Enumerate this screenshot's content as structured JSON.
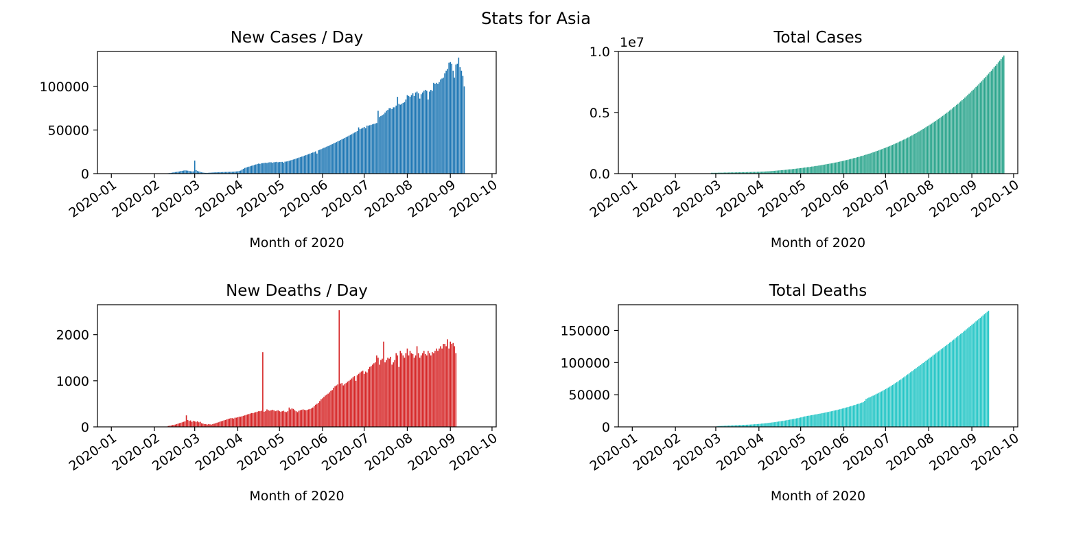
{
  "figure": {
    "title": "Stats for Asia"
  },
  "chart_data": [
    {
      "type": "bar",
      "title": "New Cases / Day",
      "xlabel": "Month of 2020",
      "ylabel": "",
      "color": "#1f77b4",
      "x_ticks": [
        "2020-01",
        "2020-02",
        "2020-03",
        "2020-04",
        "2020-05",
        "2020-06",
        "2020-07",
        "2020-08",
        "2020-09",
        "2020-10"
      ],
      "y_ticks": [
        0,
        50000,
        100000
      ],
      "y_tick_labels": [
        "0",
        "50000",
        "100000"
      ],
      "y_offset_label": "",
      "xlim": [
        "2019-12-22",
        "2020-10-04"
      ],
      "ylim": [
        0,
        140000
      ],
      "x_start": "2020-01-22",
      "x_end": "2020-09-21",
      "values": [
        0,
        0,
        0,
        0,
        0,
        0,
        0,
        0,
        0,
        0,
        0,
        0,
        0,
        0,
        0,
        0,
        0,
        0,
        0,
        0,
        500,
        700,
        900,
        1200,
        1500,
        1800,
        2000,
        2300,
        2500,
        3000,
        3200,
        3500,
        3800,
        3600,
        3400,
        3000,
        2800,
        2500,
        2600,
        15000,
        4000,
        3000,
        2500,
        2000,
        1500,
        1200,
        1000,
        900,
        900,
        1000,
        1100,
        1200,
        1300,
        1400,
        1500,
        1500,
        1600,
        1700,
        1700,
        1800,
        1800,
        1900,
        1900,
        2000,
        2000,
        2100,
        2100,
        2200,
        2400,
        2500,
        2700,
        3000,
        3500,
        4500,
        5500,
        6500,
        7000,
        7500,
        8000,
        8500,
        9000,
        9500,
        10000,
        10500,
        11000,
        11500,
        11200,
        11800,
        12000,
        12300,
        12500,
        12200,
        12800,
        13000,
        13000,
        12500,
        13000,
        13200,
        13500,
        13000,
        13300,
        13400,
        13500,
        12600,
        13700,
        13900,
        14200,
        14700,
        15200,
        15700,
        16200,
        16700,
        17300,
        17800,
        18400,
        18900,
        19500,
        20000,
        20600,
        21200,
        21800,
        22400,
        23000,
        23600,
        24200,
        24800,
        25500,
        23000,
        26800,
        27400,
        28100,
        28800,
        29500,
        30200,
        30900,
        31600,
        32300,
        33100,
        33800,
        34600,
        35300,
        36100,
        36900,
        37700,
        38500,
        39300,
        40100,
        40900,
        41800,
        42600,
        43500,
        44300,
        45200,
        46100,
        47000,
        47900,
        48800,
        53000,
        51000,
        51600,
        52500,
        53500,
        52000,
        55000,
        55000,
        55500,
        56000,
        56500,
        57000,
        57500,
        58000,
        72000,
        65000,
        66000,
        67000,
        68000,
        70000,
        72000,
        73000,
        75000,
        75000,
        74000,
        76000,
        76000,
        78000,
        88000,
        80000,
        79000,
        80000,
        81000,
        82000,
        85000,
        90000,
        89000,
        88000,
        90000,
        92000,
        89000,
        93000,
        94000,
        92000,
        86000,
        91000,
        93000,
        95000,
        96000,
        95000,
        85000,
        94000,
        96000,
        95000,
        104000,
        103000,
        104000,
        103000,
        105000,
        108000,
        109000,
        110000,
        115000,
        118000,
        120000,
        127000,
        128000,
        126000,
        118000,
        110000,
        125000,
        126000,
        133000,
        122000,
        118000,
        112000,
        100000
      ]
    },
    {
      "type": "bar",
      "title": "Total Cases",
      "xlabel": "Month of 2020",
      "ylabel": "",
      "color": "#2ca58d",
      "x_ticks": [
        "2020-01",
        "2020-02",
        "2020-03",
        "2020-04",
        "2020-05",
        "2020-06",
        "2020-07",
        "2020-08",
        "2020-09",
        "2020-10"
      ],
      "y_ticks": [
        0,
        0.5,
        1.0
      ],
      "y_tick_labels": [
        "0.0",
        "0.5",
        "1.0"
      ],
      "y_offset_label": "1e7",
      "xlim": [
        "2019-12-22",
        "2020-10-04"
      ],
      "ylim": [
        0,
        1.0
      ],
      "x_start": "2020-01-22",
      "x_end": "2020-09-21",
      "values": [
        0.0,
        0.0,
        0.0,
        0.0,
        0.0,
        0.0,
        0.0,
        0.0,
        0.0,
        0.0,
        0.0,
        0.0,
        0.0,
        0.0,
        0.0,
        0.0,
        0.0,
        0.0,
        0.0,
        0.0,
        0.0,
        0.0,
        0.0,
        0.0,
        0.0,
        0.0,
        0.0,
        0.0,
        0.0,
        0.0,
        0.0,
        0.0,
        0.0,
        0.0,
        0.0,
        0.0,
        0.007,
        0.007,
        0.007,
        0.007,
        0.007,
        0.008,
        0.008,
        0.008,
        0.008,
        0.009,
        0.009,
        0.009,
        0.009,
        0.01,
        0.01,
        0.01,
        0.01,
        0.01,
        0.011,
        0.011,
        0.011,
        0.011,
        0.012,
        0.012,
        0.012,
        0.012,
        0.013,
        0.013,
        0.013,
        0.014,
        0.014,
        0.014,
        0.014,
        0.015,
        0.015,
        0.016,
        0.016,
        0.017,
        0.017,
        0.018,
        0.019,
        0.019,
        0.02,
        0.021,
        0.022,
        0.023,
        0.024,
        0.025,
        0.026,
        0.027,
        0.028,
        0.029,
        0.03,
        0.031,
        0.032,
        0.034,
        0.035,
        0.036,
        0.037,
        0.039,
        0.04,
        0.041,
        0.043,
        0.044,
        0.045,
        0.047,
        0.048,
        0.05,
        0.051,
        0.053,
        0.054,
        0.056,
        0.058,
        0.059,
        0.061,
        0.063,
        0.064,
        0.066,
        0.068,
        0.07,
        0.072,
        0.074,
        0.076,
        0.078,
        0.08,
        0.082,
        0.084,
        0.086,
        0.089,
        0.091,
        0.093,
        0.096,
        0.098,
        0.101,
        0.103,
        0.106,
        0.109,
        0.111,
        0.114,
        0.117,
        0.12,
        0.123,
        0.126,
        0.129,
        0.132,
        0.135,
        0.138,
        0.142,
        0.145,
        0.148,
        0.152,
        0.156,
        0.159,
        0.163,
        0.166,
        0.17,
        0.174,
        0.178,
        0.182,
        0.186,
        0.19,
        0.195,
        0.199,
        0.203,
        0.208,
        0.212,
        0.217,
        0.221,
        0.226,
        0.231,
        0.236,
        0.241,
        0.246,
        0.251,
        0.256,
        0.262,
        0.267,
        0.273,
        0.278,
        0.284,
        0.289,
        0.295,
        0.301,
        0.307,
        0.313,
        0.32,
        0.326,
        0.332,
        0.339,
        0.345,
        0.352,
        0.359,
        0.366,
        0.373,
        0.38,
        0.387,
        0.394,
        0.401,
        0.409,
        0.417,
        0.424,
        0.432,
        0.44,
        0.448,
        0.456,
        0.464,
        0.473,
        0.481,
        0.49,
        0.498,
        0.507,
        0.516,
        0.525,
        0.534,
        0.544,
        0.553,
        0.563,
        0.572,
        0.582,
        0.592,
        0.602,
        0.612,
        0.622,
        0.633,
        0.643,
        0.654,
        0.665,
        0.676,
        0.687,
        0.698,
        0.709,
        0.721,
        0.732,
        0.744,
        0.756,
        0.768,
        0.78,
        0.793,
        0.805,
        0.818,
        0.831,
        0.843,
        0.857,
        0.87,
        0.883,
        0.897,
        0.911,
        0.924,
        0.938,
        0.953,
        0.967
      ]
    },
    {
      "type": "bar",
      "title": "New Deaths / Day",
      "xlabel": "Month of 2020",
      "ylabel": "",
      "color": "#d62728",
      "x_ticks": [
        "2020-01",
        "2020-02",
        "2020-03",
        "2020-04",
        "2020-05",
        "2020-06",
        "2020-07",
        "2020-08",
        "2020-09",
        "2020-10"
      ],
      "y_ticks": [
        0,
        1000,
        2000
      ],
      "y_tick_labels": [
        "0",
        "1000",
        "2000"
      ],
      "y_offset_label": "",
      "xlim": [
        "2019-12-22",
        "2020-10-04"
      ],
      "ylim": [
        0,
        2650
      ],
      "x_start": "2020-01-22",
      "x_end": "2020-09-21",
      "values": [
        0,
        0,
        0,
        0,
        0,
        0,
        0,
        0,
        0,
        0,
        0,
        0,
        0,
        0,
        0,
        0,
        0,
        0,
        0,
        0,
        20,
        25,
        30,
        40,
        45,
        50,
        60,
        70,
        80,
        90,
        100,
        110,
        120,
        250,
        150,
        130,
        140,
        110,
        130,
        120,
        110,
        120,
        100,
        110,
        80,
        70,
        60,
        60,
        50,
        60,
        55,
        50,
        60,
        70,
        80,
        90,
        100,
        110,
        120,
        130,
        140,
        150,
        160,
        170,
        180,
        190,
        190,
        180,
        200,
        200,
        210,
        220,
        220,
        230,
        240,
        250,
        260,
        270,
        280,
        290,
        300,
        300,
        310,
        320,
        330,
        340,
        340,
        350,
        1620,
        330,
        340,
        380,
        360,
        350,
        360,
        370,
        360,
        340,
        350,
        360,
        340,
        330,
        340,
        350,
        330,
        320,
        340,
        420,
        380,
        400,
        390,
        360,
        340,
        320,
        350,
        360,
        370,
        380,
        370,
        360,
        370,
        380,
        390,
        400,
        420,
        450,
        480,
        500,
        520,
        560,
        600,
        620,
        650,
        680,
        700,
        720,
        750,
        780,
        800,
        850,
        880,
        900,
        920,
        2530,
        940,
        950,
        900,
        930,
        950,
        980,
        1000,
        1020,
        1050,
        1080,
        1100,
        1000,
        1120,
        1150,
        1180,
        1200,
        1220,
        1150,
        1200,
        1180,
        1250,
        1300,
        1320,
        1350,
        1380,
        1400,
        1550,
        1500,
        1350,
        1450,
        1480,
        1850,
        1400,
        1450,
        1500,
        1480,
        1520,
        1350,
        1400,
        1450,
        1600,
        1550,
        1300,
        1650,
        1600,
        1550,
        1500,
        1600,
        1700,
        1550,
        1650,
        1600,
        1580,
        1500,
        1550,
        1750,
        1600,
        1500,
        1550,
        1600,
        1650,
        1580,
        1550,
        1650,
        1600,
        1550,
        1620,
        1600,
        1650,
        1700,
        1650,
        1700,
        1750,
        1700,
        1800,
        1800,
        1750,
        1900,
        1700,
        1850,
        1800,
        1820,
        1750,
        1600
      ]
    },
    {
      "type": "bar",
      "title": "Total Deaths",
      "xlabel": "Month of 2020",
      "ylabel": "",
      "color": "#26c6c6",
      "x_ticks": [
        "2020-01",
        "2020-02",
        "2020-03",
        "2020-04",
        "2020-05",
        "2020-06",
        "2020-07",
        "2020-08",
        "2020-09",
        "2020-10"
      ],
      "y_ticks": [
        0,
        50000,
        100000,
        150000
      ],
      "y_tick_labels": [
        "0",
        "50000",
        "100000",
        "150000"
      ],
      "y_offset_label": "",
      "xlim": [
        "2019-12-22",
        "2020-10-04"
      ],
      "ylim": [
        0,
        190000
      ],
      "x_start": "2020-01-22",
      "x_end": "2020-09-21",
      "values": [
        0,
        0,
        0,
        0,
        0,
        0,
        0,
        0,
        0,
        0,
        0,
        0,
        0,
        0,
        0,
        0,
        0,
        0,
        0,
        0,
        0,
        0,
        0,
        0,
        0,
        0,
        0,
        0,
        0,
        0,
        0,
        0,
        0,
        0,
        0,
        0,
        0,
        0,
        0,
        0,
        1000,
        1300,
        1400,
        1500,
        1600,
        1700,
        1800,
        1900,
        2000,
        2100,
        2200,
        2300,
        2400,
        2500,
        2600,
        2700,
        2800,
        2900,
        3000,
        3100,
        3200,
        3300,
        3400,
        3500,
        3600,
        3800,
        3900,
        4100,
        4300,
        4400,
        4600,
        4800,
        5100,
        5300,
        5500,
        5700,
        6000,
        6200,
        6500,
        6800,
        7000,
        7300,
        7600,
        7900,
        8300,
        8600,
        8900,
        9300,
        9600,
        10000,
        10400,
        10800,
        11200,
        11600,
        12000,
        12400,
        12800,
        13300,
        13700,
        14200,
        14700,
        15200,
        15700,
        16300,
        16800,
        17200,
        17500,
        17900,
        18300,
        18700,
        19100,
        19500,
        19900,
        20300,
        20700,
        21100,
        21500,
        22000,
        22400,
        22900,
        23300,
        23800,
        24300,
        24800,
        25300,
        25800,
        26300,
        26800,
        27400,
        27900,
        28500,
        29100,
        29700,
        30300,
        30900,
        31500,
        32200,
        32800,
        33500,
        34200,
        34900,
        35600,
        36300,
        37000,
        37800,
        38500,
        40500,
        43500,
        44500,
        45500,
        46500,
        47500,
        48500,
        49500,
        50600,
        51700,
        52800,
        53900,
        55100,
        56200,
        57400,
        58700,
        59900,
        61200,
        62500,
        63800,
        65200,
        66600,
        68000,
        69400,
        70900,
        72400,
        73900,
        75500,
        77000,
        78600,
        80200,
        81800,
        83400,
        85000,
        86600,
        88200,
        89800,
        91400,
        93000,
        94600,
        96200,
        97800,
        99400,
        101100,
        102700,
        104300,
        106000,
        107600,
        109200,
        110900,
        112500,
        114200,
        115800,
        117400,
        119100,
        120800,
        122400,
        124100,
        125800,
        127400,
        129100,
        130800,
        132500,
        134200,
        135900,
        137600,
        139300,
        141100,
        142800,
        144500,
        146300,
        148000,
        149800,
        151600,
        153300,
        155100,
        156900,
        158700,
        160500,
        162300,
        164100,
        166000,
        167800,
        169600,
        171500,
        173300,
        175100,
        177000,
        178800,
        180600
      ]
    }
  ]
}
